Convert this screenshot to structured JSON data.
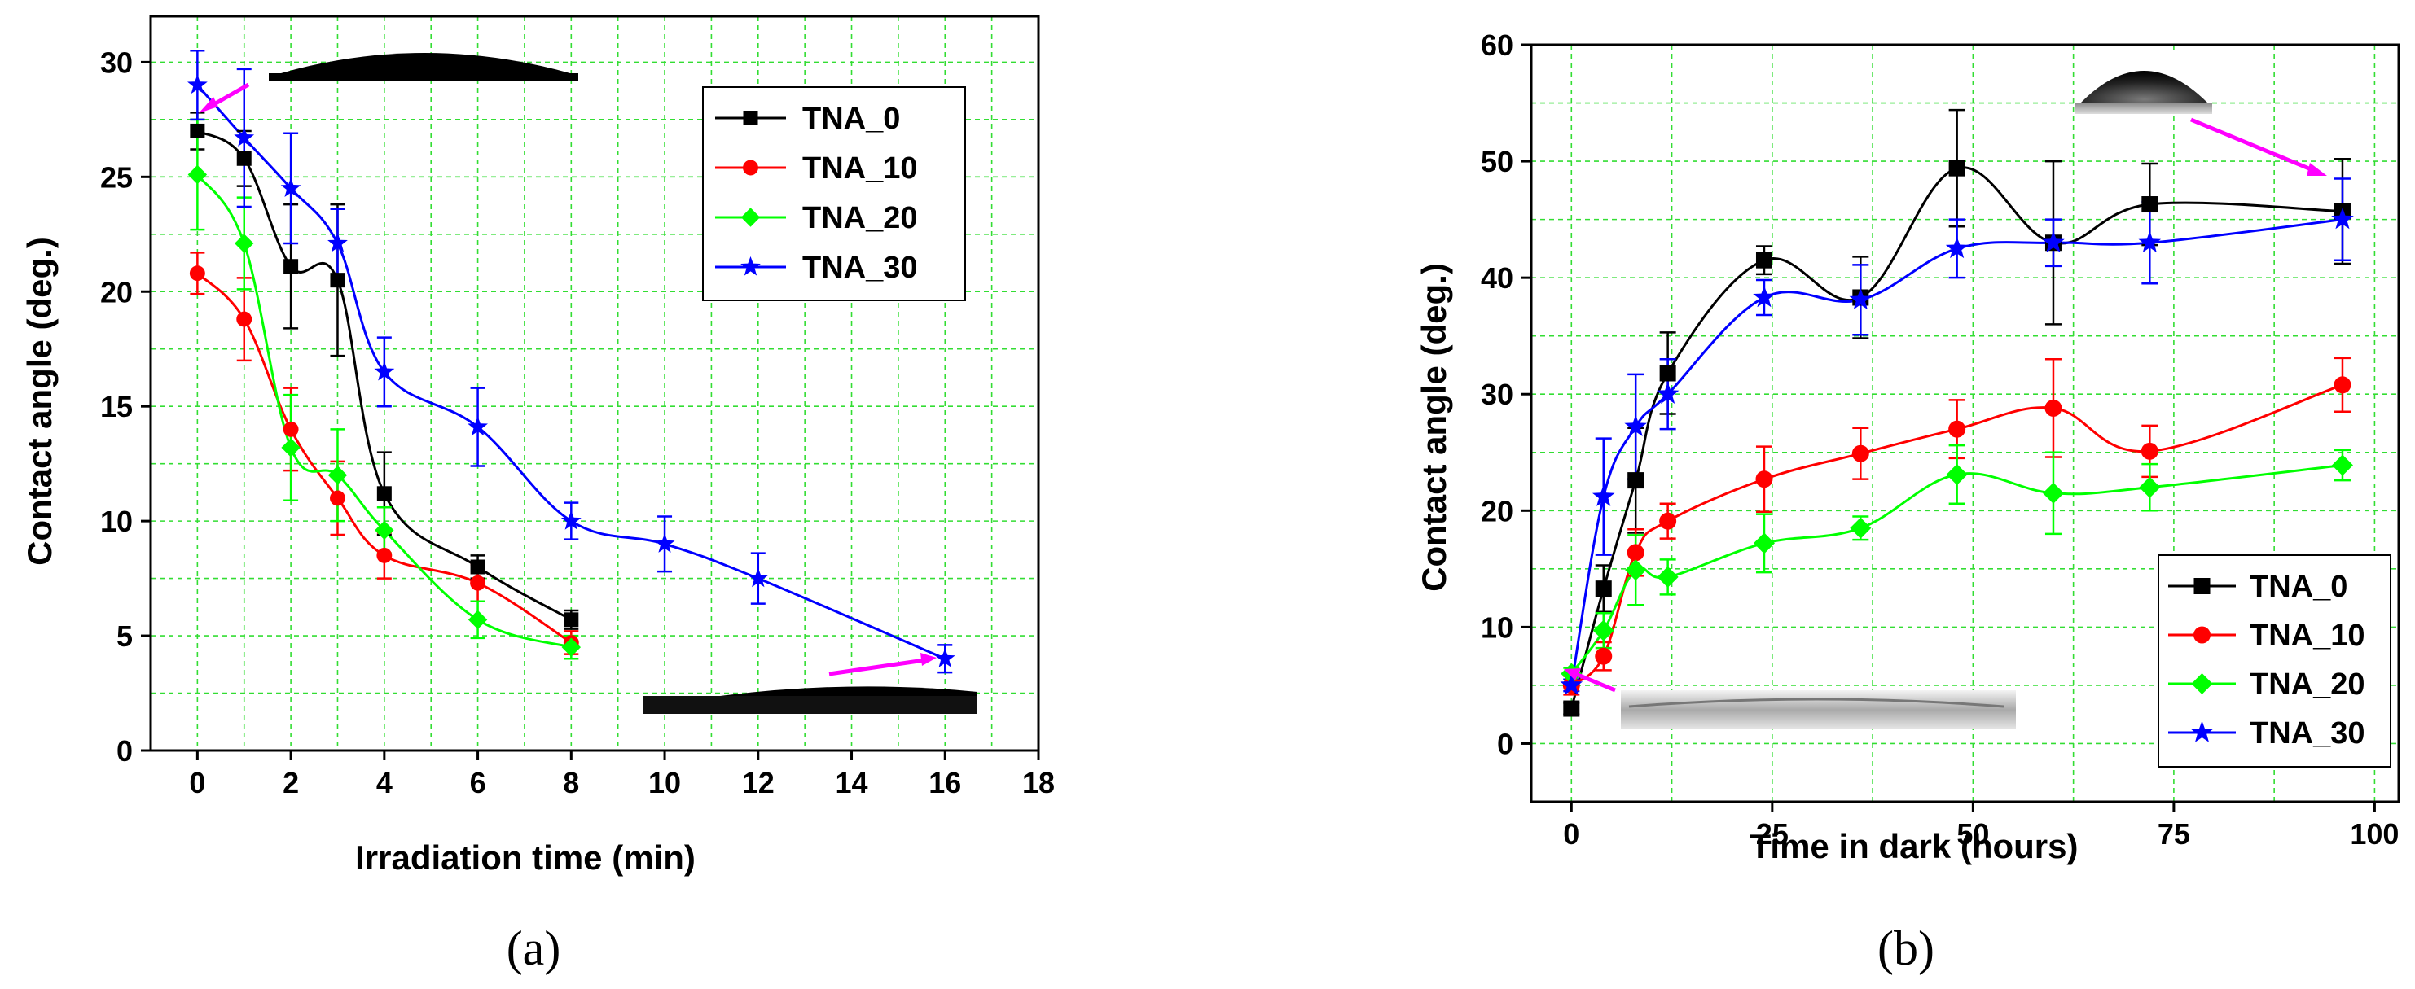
{
  "chart_data": [
    {
      "panel": "a",
      "type": "line",
      "caption": "(a)",
      "xlabel": "Irradiation time (min)",
      "ylabel": "Contact angle (deg.)",
      "xlim": [
        -1,
        18
      ],
      "ylim": [
        0,
        32
      ],
      "xticks": [
        0,
        2,
        4,
        6,
        8,
        10,
        12,
        14,
        16,
        18
      ],
      "yticks": [
        0,
        5,
        10,
        15,
        20,
        25,
        30
      ],
      "grid": true,
      "legend_position": "top-right",
      "series": [
        {
          "name": "TNA_0",
          "color": "#000000",
          "marker": "square",
          "x": [
            0,
            1,
            2,
            3,
            4,
            6,
            8
          ],
          "y": [
            27.0,
            25.8,
            21.1,
            20.5,
            11.2,
            8.0,
            5.7
          ],
          "err": [
            0.8,
            1.2,
            2.7,
            3.3,
            1.8,
            0.5,
            0.4
          ]
        },
        {
          "name": "TNA_10",
          "color": "#ff0000",
          "marker": "circle",
          "x": [
            0,
            1,
            2,
            3,
            4,
            6,
            8
          ],
          "y": [
            20.8,
            18.8,
            14.0,
            11.0,
            8.5,
            7.3,
            4.7
          ],
          "err": [
            0.9,
            1.8,
            1.8,
            1.6,
            1.0,
            0.8,
            0.5
          ]
        },
        {
          "name": "TNA_20",
          "color": "#00ff00",
          "marker": "diamond",
          "x": [
            0,
            1,
            2,
            3,
            4,
            6,
            8
          ],
          "y": [
            25.1,
            22.1,
            13.2,
            12.0,
            9.6,
            5.7,
            4.5
          ],
          "err": [
            2.4,
            2.0,
            2.3,
            2.0,
            1.0,
            0.8,
            0.5
          ]
        },
        {
          "name": "TNA_30",
          "color": "#0000ff",
          "marker": "star",
          "x": [
            0,
            1,
            2,
            3,
            4,
            6,
            8,
            10,
            12,
            16
          ],
          "y": [
            29.0,
            26.7,
            24.5,
            22.1,
            16.5,
            14.1,
            10.0,
            9.0,
            7.5,
            4.0
          ],
          "err": [
            1.5,
            3.0,
            2.4,
            1.5,
            1.5,
            1.7,
            0.8,
            1.2,
            1.1,
            0.6
          ]
        }
      ]
    },
    {
      "panel": "b",
      "type": "line",
      "caption": "(b)",
      "xlabel": "Time in dark (hours)",
      "ylabel": "Contact angle (deg.)",
      "xlim": [
        -5,
        103
      ],
      "ylim": [
        -5,
        60
      ],
      "xticks": [
        0,
        25,
        50,
        75,
        100
      ],
      "yticks": [
        0,
        10,
        20,
        30,
        40,
        50,
        60
      ],
      "grid": true,
      "legend_position": "bottom-right",
      "series": [
        {
          "name": "TNA_0",
          "color": "#000000",
          "marker": "square",
          "x": [
            0,
            4,
            8,
            12,
            24,
            36,
            48,
            60,
            72,
            96
          ],
          "y": [
            3.0,
            13.3,
            22.6,
            31.8,
            41.5,
            38.3,
            49.4,
            43.0,
            46.3,
            45.7
          ],
          "err": [
            0.5,
            2.0,
            4.5,
            3.5,
            1.2,
            3.5,
            5.0,
            7.0,
            3.5,
            4.5
          ]
        },
        {
          "name": "TNA_10",
          "color": "#ff0000",
          "marker": "circle",
          "x": [
            0,
            4,
            8,
            12,
            24,
            36,
            48,
            60,
            72,
            96
          ],
          "y": [
            5.0,
            7.5,
            16.4,
            19.1,
            22.7,
            24.9,
            27.0,
            28.8,
            25.1,
            30.8
          ],
          "err": [
            0.8,
            1.2,
            2.0,
            1.5,
            2.8,
            2.2,
            2.5,
            4.2,
            2.2,
            2.3
          ]
        },
        {
          "name": "TNA_20",
          "color": "#00ff00",
          "marker": "diamond",
          "x": [
            0,
            4,
            8,
            12,
            24,
            36,
            48,
            60,
            72,
            96
          ],
          "y": [
            6.0,
            9.7,
            14.9,
            14.3,
            17.2,
            18.5,
            23.1,
            21.5,
            22.0,
            23.9
          ],
          "err": [
            0.5,
            1.5,
            3.0,
            1.5,
            2.5,
            1.0,
            2.5,
            3.5,
            2.0,
            1.3
          ]
        },
        {
          "name": "TNA_30",
          "color": "#0000ff",
          "marker": "star",
          "x": [
            0,
            4,
            8,
            12,
            24,
            36,
            48,
            60,
            72,
            96
          ],
          "y": [
            5.0,
            21.2,
            27.2,
            30.0,
            38.3,
            38.1,
            42.5,
            43.0,
            43.0,
            45.0
          ],
          "err": [
            0.5,
            5.0,
            4.5,
            3.0,
            1.5,
            3.0,
            2.5,
            2.0,
            3.5,
            3.5
          ]
        }
      ]
    }
  ]
}
